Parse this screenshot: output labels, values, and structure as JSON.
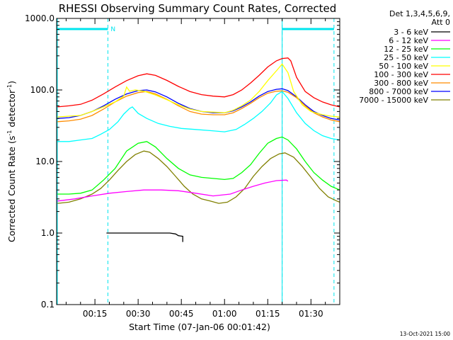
{
  "chart_data": {
    "type": "line",
    "title": "RHESSI Observing Summary Count Rates, Corrected",
    "xlabel": "Start Time (07-Jan-06 00:01:42)",
    "ylabel_main": "Corrected Count Rate (s",
    "ylabel_sup1": "-1",
    "ylabel_mid": " detector",
    "ylabel_sup2": "-1",
    "ylabel_end": ")",
    "y_scale": "log",
    "ylim": [
      0.1,
      1000
    ],
    "xlim_minutes": [
      1.7,
      100
    ],
    "x_ticks": [
      {
        "minute": 15,
        "label": "00:15"
      },
      {
        "minute": 30,
        "label": "00:30"
      },
      {
        "minute": 45,
        "label": "00:45"
      },
      {
        "minute": 60,
        "label": "01:00"
      },
      {
        "minute": 75,
        "label": "01:15"
      },
      {
        "minute": 90,
        "label": "01:30"
      }
    ],
    "y_ticks": [
      {
        "value": 1000,
        "label": "1000.0"
      },
      {
        "value": 100,
        "label": "100.0"
      },
      {
        "value": 10,
        "label": "10.0"
      },
      {
        "value": 1,
        "label": "1.0"
      },
      {
        "value": 0.1,
        "label": "0.1"
      }
    ],
    "legend_header": [
      "Det 1,3,4,5,6,9,",
      "Att 0"
    ],
    "legend_placement": "right",
    "series": [
      {
        "name": "3 - 6 keV",
        "color": "#000000",
        "points": [
          [
            19,
            1.0
          ],
          [
            23,
            1.0
          ],
          [
            26,
            1.0
          ],
          [
            28,
            1.0
          ],
          [
            31,
            1.0
          ],
          [
            34,
            1.0
          ],
          [
            38,
            1.0
          ],
          [
            41,
            1.0
          ],
          [
            43,
            0.97
          ],
          [
            44,
            0.92
          ],
          [
            45.5,
            0.9
          ],
          [
            45.5,
            0.75
          ]
        ]
      },
      {
        "name": "6 - 12 keV",
        "color": "#ff00ff",
        "points": [
          [
            2,
            2.8
          ],
          [
            8,
            3.0
          ],
          [
            14,
            3.3
          ],
          [
            20,
            3.6
          ],
          [
            26,
            3.8
          ],
          [
            32,
            4.0
          ],
          [
            38,
            4.0
          ],
          [
            44,
            3.9
          ],
          [
            50,
            3.6
          ],
          [
            56,
            3.3
          ],
          [
            62,
            3.5
          ],
          [
            66,
            4.0
          ],
          [
            70,
            4.5
          ],
          [
            74,
            5.0
          ],
          [
            78,
            5.4
          ],
          [
            81.5,
            5.5
          ],
          [
            82,
            5.3
          ]
        ]
      },
      {
        "name": "12 - 25 keV",
        "color": "#00ff00",
        "points": [
          [
            2,
            3.5
          ],
          [
            6,
            3.5
          ],
          [
            10,
            3.6
          ],
          [
            14,
            4.0
          ],
          [
            18,
            5.5
          ],
          [
            22,
            8.0
          ],
          [
            26,
            14
          ],
          [
            30,
            18
          ],
          [
            33,
            19
          ],
          [
            36,
            16
          ],
          [
            40,
            11
          ],
          [
            44,
            8
          ],
          [
            48,
            6.5
          ],
          [
            52,
            6.0
          ],
          [
            56,
            5.8
          ],
          [
            60,
            5.6
          ],
          [
            63,
            5.8
          ],
          [
            66,
            7.0
          ],
          [
            69,
            9.0
          ],
          [
            72,
            13
          ],
          [
            75,
            18
          ],
          [
            78,
            21
          ],
          [
            80,
            22
          ],
          [
            82,
            20
          ],
          [
            85,
            15
          ],
          [
            88,
            10
          ],
          [
            91,
            7
          ],
          [
            94,
            5.5
          ],
          [
            97,
            4.5
          ],
          [
            100,
            4.0
          ]
        ]
      },
      {
        "name": "25 - 50 keV",
        "color": "#00ffff",
        "points": [
          [
            2,
            19
          ],
          [
            6,
            19
          ],
          [
            10,
            20
          ],
          [
            14,
            21
          ],
          [
            17,
            24
          ],
          [
            20,
            28
          ],
          [
            23,
            36
          ],
          [
            25,
            46
          ],
          [
            27,
            55
          ],
          [
            28,
            58
          ],
          [
            30,
            47
          ],
          [
            33,
            40
          ],
          [
            37,
            34
          ],
          [
            41,
            31
          ],
          [
            45,
            29
          ],
          [
            50,
            28
          ],
          [
            55,
            27
          ],
          [
            60,
            26
          ],
          [
            64,
            28
          ],
          [
            67,
            33
          ],
          [
            70,
            40
          ],
          [
            73,
            50
          ],
          [
            76,
            66
          ],
          [
            78,
            85
          ],
          [
            80,
            95
          ],
          [
            82,
            76
          ],
          [
            85,
            48
          ],
          [
            88,
            34
          ],
          [
            91,
            27
          ],
          [
            94,
            23
          ],
          [
            97,
            21
          ],
          [
            100,
            20
          ]
        ]
      },
      {
        "name": "50 - 100 keV",
        "color": "#ffff00",
        "points": [
          [
            2,
            42
          ],
          [
            6,
            43
          ],
          [
            10,
            44
          ],
          [
            14,
            50
          ],
          [
            18,
            58
          ],
          [
            22,
            68
          ],
          [
            25,
            82
          ],
          [
            26,
            110
          ],
          [
            27,
            96
          ],
          [
            29,
            100
          ],
          [
            32,
            96
          ],
          [
            36,
            85
          ],
          [
            40,
            73
          ],
          [
            44,
            62
          ],
          [
            48,
            54
          ],
          [
            52,
            50
          ],
          [
            56,
            49
          ],
          [
            60,
            48
          ],
          [
            63,
            52
          ],
          [
            66,
            60
          ],
          [
            69,
            72
          ],
          [
            72,
            95
          ],
          [
            75,
            135
          ],
          [
            78,
            185
          ],
          [
            80,
            230
          ],
          [
            82,
            175
          ],
          [
            84,
            95
          ],
          [
            87,
            62
          ],
          [
            90,
            50
          ],
          [
            94,
            45
          ],
          [
            97,
            43
          ],
          [
            100,
            42
          ]
        ]
      },
      {
        "name": "100 - 300 keV",
        "color": "#ff0000",
        "points": [
          [
            2,
            58
          ],
          [
            6,
            60
          ],
          [
            10,
            63
          ],
          [
            14,
            72
          ],
          [
            18,
            88
          ],
          [
            22,
            110
          ],
          [
            26,
            135
          ],
          [
            30,
            158
          ],
          [
            33,
            168
          ],
          [
            36,
            160
          ],
          [
            40,
            136
          ],
          [
            44,
            112
          ],
          [
            48,
            95
          ],
          [
            52,
            86
          ],
          [
            56,
            82
          ],
          [
            60,
            80
          ],
          [
            63,
            86
          ],
          [
            66,
            100
          ],
          [
            69,
            125
          ],
          [
            72,
            160
          ],
          [
            75,
            210
          ],
          [
            78,
            255
          ],
          [
            80,
            275
          ],
          [
            82,
            280
          ],
          [
            83,
            255
          ],
          [
            85,
            150
          ],
          [
            88,
            95
          ],
          [
            91,
            78
          ],
          [
            94,
            68
          ],
          [
            97,
            62
          ],
          [
            100,
            58
          ]
        ]
      },
      {
        "name": "300 - 800 keV",
        "color": "#ff8c00",
        "points": [
          [
            2,
            36
          ],
          [
            6,
            37
          ],
          [
            10,
            39
          ],
          [
            14,
            44
          ],
          [
            18,
            54
          ],
          [
            22,
            68
          ],
          [
            26,
            82
          ],
          [
            30,
            92
          ],
          [
            33,
            95
          ],
          [
            36,
            88
          ],
          [
            40,
            74
          ],
          [
            44,
            60
          ],
          [
            48,
            50
          ],
          [
            52,
            46
          ],
          [
            56,
            45
          ],
          [
            60,
            45
          ],
          [
            63,
            48
          ],
          [
            66,
            55
          ],
          [
            69,
            65
          ],
          [
            72,
            78
          ],
          [
            75,
            90
          ],
          [
            78,
            96
          ],
          [
            80,
            97
          ],
          [
            82,
            93
          ],
          [
            85,
            78
          ],
          [
            88,
            60
          ],
          [
            91,
            48
          ],
          [
            94,
            42
          ],
          [
            97,
            38
          ],
          [
            100,
            36
          ]
        ]
      },
      {
        "name": "800 - 7000 keV",
        "color": "#0000ff",
        "points": [
          [
            2,
            40
          ],
          [
            6,
            41
          ],
          [
            10,
            44
          ],
          [
            14,
            50
          ],
          [
            18,
            60
          ],
          [
            22,
            74
          ],
          [
            26,
            88
          ],
          [
            30,
            98
          ],
          [
            33,
            100
          ],
          [
            36,
            94
          ],
          [
            40,
            80
          ],
          [
            44,
            65
          ],
          [
            48,
            55
          ],
          [
            52,
            50
          ],
          [
            56,
            48
          ],
          [
            60,
            48
          ],
          [
            63,
            51
          ],
          [
            66,
            58
          ],
          [
            69,
            68
          ],
          [
            72,
            82
          ],
          [
            75,
            95
          ],
          [
            78,
            102
          ],
          [
            80,
            104
          ],
          [
            82,
            98
          ],
          [
            85,
            80
          ],
          [
            88,
            62
          ],
          [
            91,
            50
          ],
          [
            94,
            44
          ],
          [
            97,
            40
          ],
          [
            100,
            38
          ]
        ]
      },
      {
        "name": "7000 - 15000 keV",
        "color": "#808000",
        "points": [
          [
            2,
            2.6
          ],
          [
            6,
            2.7
          ],
          [
            10,
            3.0
          ],
          [
            14,
            3.5
          ],
          [
            17,
            4.2
          ],
          [
            20,
            5.5
          ],
          [
            23,
            7.5
          ],
          [
            26,
            10
          ],
          [
            29,
            12.5
          ],
          [
            32,
            14
          ],
          [
            34,
            13.5
          ],
          [
            37,
            11
          ],
          [
            40,
            8.5
          ],
          [
            43,
            6.2
          ],
          [
            46,
            4.5
          ],
          [
            49,
            3.5
          ],
          [
            52,
            3.0
          ],
          [
            55,
            2.8
          ],
          [
            58,
            2.6
          ],
          [
            61,
            2.7
          ],
          [
            64,
            3.2
          ],
          [
            67,
            4.2
          ],
          [
            70,
            6.2
          ],
          [
            73,
            8.5
          ],
          [
            76,
            11
          ],
          [
            79,
            12.8
          ],
          [
            81,
            13.2
          ],
          [
            84,
            11.5
          ],
          [
            87,
            8.5
          ],
          [
            90,
            6.0
          ],
          [
            93,
            4.2
          ],
          [
            96,
            3.2
          ],
          [
            99,
            2.8
          ],
          [
            100,
            2.7
          ]
        ]
      }
    ],
    "night_markers": [
      {
        "start_minute": 1.7,
        "end_minute": 19.5,
        "label": "N"
      },
      {
        "start_minute": 80,
        "end_minute": 98,
        "label": ""
      }
    ],
    "saa_markers_minute": [
      19.5,
      80
    ],
    "footer_date": "13-Oct-2021 15:00"
  },
  "colors": {
    "axes": "#000000",
    "marker": "#00e5ee",
    "background": "#ffffff"
  }
}
